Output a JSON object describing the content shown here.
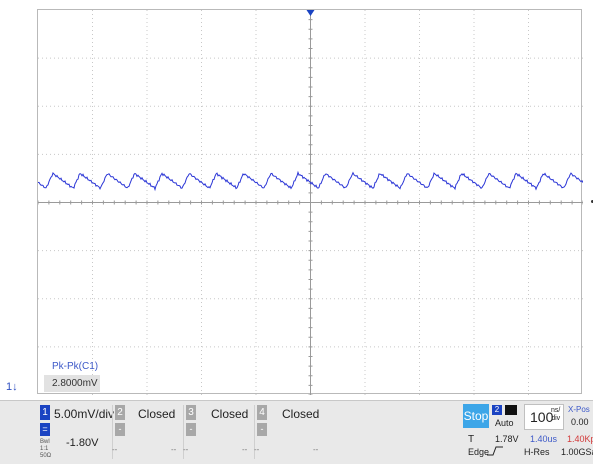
{
  "measurement": {
    "label": "Pk-Pk(C1)",
    "value": "2.8000mV"
  },
  "channel_marker": "1↓",
  "channels": [
    {
      "num": "1",
      "scale": "5.00mV/div",
      "offset": "-1.80V",
      "sub": "=",
      "small": "Bwl\n1:1\n50Ω",
      "dots": ""
    },
    {
      "num": "2",
      "scale": "Closed",
      "offset": "",
      "sub": "-",
      "small": "",
      "dots": "--"
    },
    {
      "num": "3",
      "scale": "Closed",
      "offset": "",
      "sub": "-",
      "small": "",
      "dots": "--"
    },
    {
      "num": "4",
      "scale": "Closed",
      "offset": "",
      "sub": "-",
      "small": "",
      "dots": "--"
    }
  ],
  "channel_placeholders": [
    "--",
    "--",
    "--"
  ],
  "trigger": {
    "run_state": "Stop",
    "source": "2",
    "mode": "Auto",
    "t_label": "T",
    "level": "1.78V",
    "type": "Edge"
  },
  "timebase": {
    "value": "100",
    "unit_top": "ns/",
    "unit_bottom": "div",
    "xpos_label": "X-Pos",
    "xpos_value": "0.00",
    "delay": "1.40us",
    "points": "1.40Kpts",
    "acq_mode": "H-Res",
    "sample_rate": "1.00GSa/s"
  },
  "waveform": {
    "color": "#2a35d6",
    "period_divisions": 0.5,
    "center_offset_div": 0.45,
    "peak_to_peak_mV": 2.8
  },
  "colors": {
    "channel1": "#1a43c2",
    "stop": "#3da6e8",
    "grid": "#c8c8c8",
    "points": "#d23a3a"
  }
}
